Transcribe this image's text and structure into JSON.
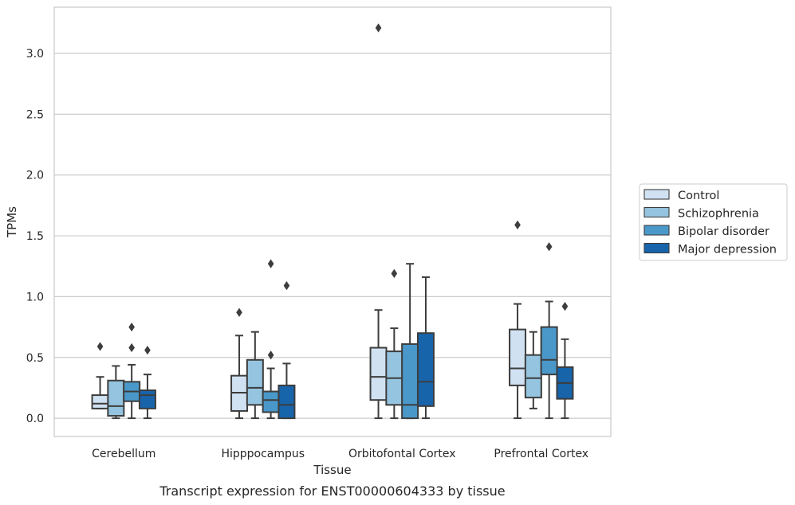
{
  "caption": "Transcript expression for ENST00000604333 by tissue",
  "chart_data": {
    "type": "boxplot",
    "xlabel": "Tissue",
    "ylabel": "TPMs",
    "ylim": [
      -0.15,
      3.38
    ],
    "yticks": [
      "0.0",
      "0.5",
      "1.0",
      "1.5",
      "2.0",
      "2.5",
      "3.0"
    ],
    "grid": "horizontal",
    "legend_position": "right",
    "categories": [
      "Cerebellum",
      "Hipppocampus",
      "Orbitofontal Cortex",
      "Prefrontal Cortex"
    ],
    "series": [
      {
        "name": "Control",
        "color": "#d0e1f2",
        "boxes": [
          {
            "whislo": 0.08,
            "q1": 0.08,
            "med": 0.12,
            "q3": 0.19,
            "whishi": 0.34,
            "fliers": [
              0.59
            ]
          },
          {
            "whislo": 0.0,
            "q1": 0.06,
            "med": 0.21,
            "q3": 0.35,
            "whishi": 0.68,
            "fliers": [
              0.87
            ]
          },
          {
            "whislo": 0.0,
            "q1": 0.15,
            "med": 0.34,
            "q3": 0.58,
            "whishi": 0.89,
            "fliers": [
              3.21
            ]
          },
          {
            "whislo": 0.0,
            "q1": 0.27,
            "med": 0.41,
            "q3": 0.73,
            "whishi": 0.94,
            "fliers": [
              1.59
            ]
          }
        ]
      },
      {
        "name": "Schizophrenia",
        "color": "#94c4df",
        "boxes": [
          {
            "whislo": 0.0,
            "q1": 0.02,
            "med": 0.1,
            "q3": 0.31,
            "whishi": 0.43,
            "fliers": []
          },
          {
            "whislo": 0.0,
            "q1": 0.11,
            "med": 0.25,
            "q3": 0.48,
            "whishi": 0.71,
            "fliers": []
          },
          {
            "whislo": 0.0,
            "q1": 0.11,
            "med": 0.33,
            "q3": 0.55,
            "whishi": 0.74,
            "fliers": [
              1.19
            ]
          },
          {
            "whislo": 0.08,
            "q1": 0.17,
            "med": 0.33,
            "q3": 0.52,
            "whishi": 0.71,
            "fliers": []
          }
        ]
      },
      {
        "name": "Bipolar disorder",
        "color": "#4a98c9",
        "boxes": [
          {
            "whislo": 0.0,
            "q1": 0.14,
            "med": 0.22,
            "q3": 0.3,
            "whishi": 0.44,
            "fliers": [
              0.58,
              0.75
            ]
          },
          {
            "whislo": 0.0,
            "q1": 0.05,
            "med": 0.15,
            "q3": 0.22,
            "whishi": 0.41,
            "fliers": [
              0.52,
              1.27
            ]
          },
          {
            "whislo": 0.0,
            "q1": 0.0,
            "med": 0.11,
            "q3": 0.61,
            "whishi": 1.27,
            "fliers": []
          },
          {
            "whislo": 0.0,
            "q1": 0.36,
            "med": 0.48,
            "q3": 0.75,
            "whishi": 0.96,
            "fliers": [
              1.41
            ]
          }
        ]
      },
      {
        "name": "Major depression",
        "color": "#1764ab",
        "boxes": [
          {
            "whislo": 0.0,
            "q1": 0.08,
            "med": 0.19,
            "q3": 0.23,
            "whishi": 0.36,
            "fliers": [
              0.56
            ]
          },
          {
            "whislo": 0.0,
            "q1": 0.0,
            "med": 0.11,
            "q3": 0.27,
            "whishi": 0.45,
            "fliers": [
              1.09
            ]
          },
          {
            "whislo": 0.0,
            "q1": 0.1,
            "med": 0.3,
            "q3": 0.7,
            "whishi": 1.16,
            "fliers": []
          },
          {
            "whislo": 0.0,
            "q1": 0.16,
            "med": 0.29,
            "q3": 0.42,
            "whishi": 0.65,
            "fliers": [
              0.92
            ]
          }
        ]
      }
    ]
  }
}
